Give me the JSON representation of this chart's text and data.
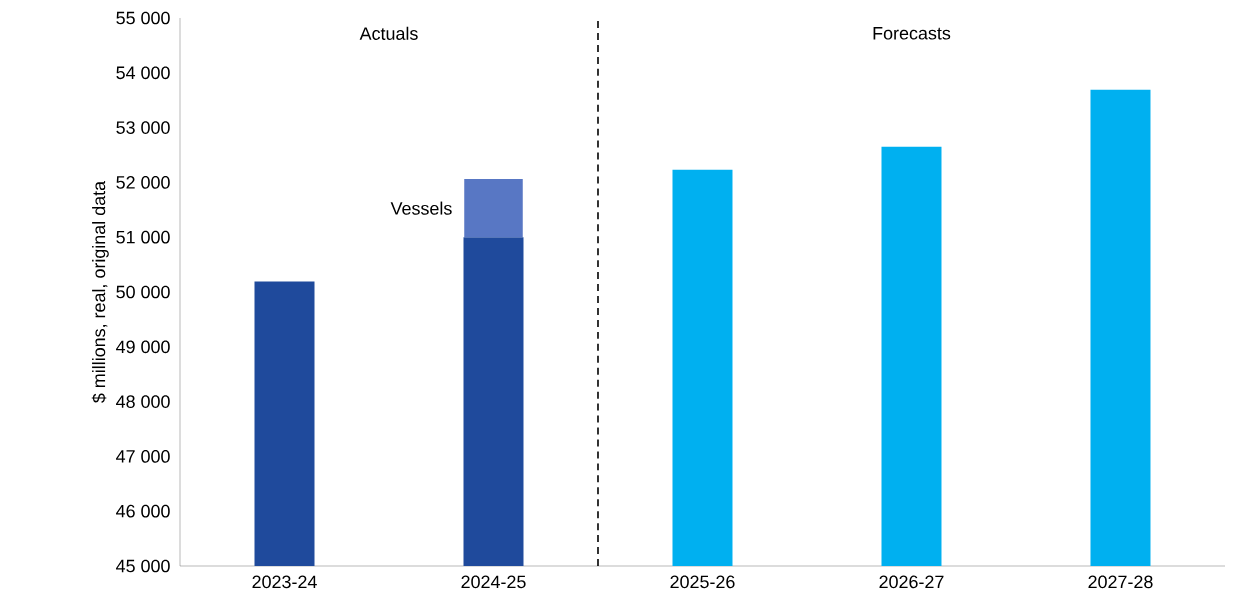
{
  "chart_data": {
    "type": "bar",
    "ylabel": "$ millions, real, original data",
    "categories": [
      "2023-24",
      "2024-25",
      "2025-26",
      "2026-27",
      "2027-28"
    ],
    "series": [
      {
        "colors": [
          "#1f4a9c",
          "#1f4a9c",
          "#00b0f0",
          "#00b0f0",
          "#00b0f0"
        ],
        "values": [
          50190,
          51000,
          52230,
          52650,
          53690
        ]
      },
      {
        "name": "Vessels",
        "color": "#5877c4",
        "base": [
          null,
          51000,
          null,
          null,
          null
        ],
        "values": [
          null,
          1060,
          null,
          null,
          null
        ]
      }
    ],
    "ylim": [
      45000,
      55000
    ],
    "yticks": [
      {
        "value": 45000,
        "label": "45 000"
      },
      {
        "value": 46000,
        "label": "46 000"
      },
      {
        "value": 47000,
        "label": "47 000"
      },
      {
        "value": 48000,
        "label": "48 000"
      },
      {
        "value": 49000,
        "label": "49 000"
      },
      {
        "value": 50000,
        "label": "50 000"
      },
      {
        "value": 51000,
        "label": "51 000"
      },
      {
        "value": 52000,
        "label": "52 000"
      },
      {
        "value": 53000,
        "label": "53 000"
      },
      {
        "value": 54000,
        "label": "54 000"
      },
      {
        "value": 55000,
        "label": "55 000"
      }
    ],
    "annotations": [
      "Actuals",
      "Forecasts"
    ],
    "grid": false
  }
}
